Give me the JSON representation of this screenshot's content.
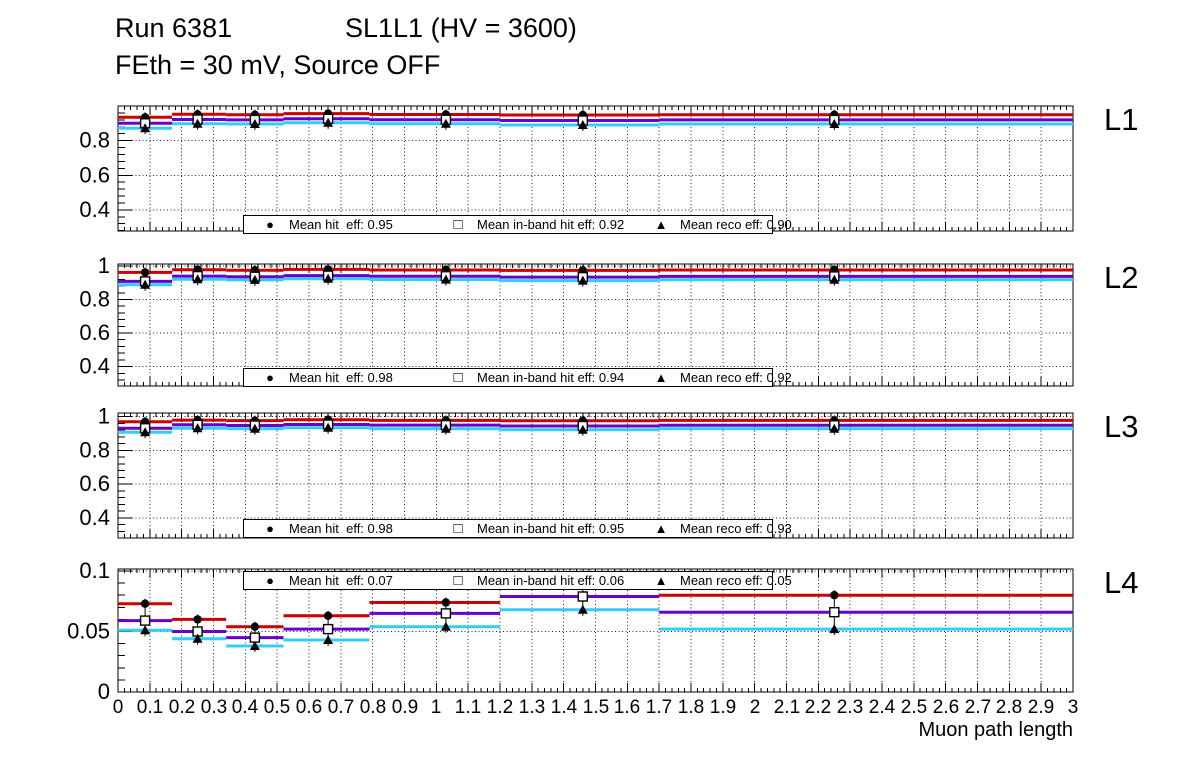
{
  "header": {
    "run_title": "Run 6381",
    "chamber_title": "SL1L1 (HV = 3600)",
    "subtitle": "FEth = 30 mV, Source OFF"
  },
  "x_axis": {
    "title": "Muon path length",
    "tick_labels": [
      "0",
      "0.1",
      "0.2",
      "0.3",
      "0.4",
      "0.5",
      "0.6",
      "0.7",
      "0.8",
      "0.9",
      "1",
      "1.1",
      "1.2",
      "1.3",
      "1.4",
      "1.5",
      "1.6",
      "1.7",
      "1.8",
      "1.9",
      "2",
      "2.1",
      "2.2",
      "2.3",
      "2.4",
      "2.5",
      "2.6",
      "2.7",
      "2.8",
      "2.9",
      "3"
    ]
  },
  "chart_data": {
    "type": "line",
    "x_label": "Muon path length",
    "x_range": [
      0,
      3
    ],
    "grid": "dotted",
    "bin_edges": [
      0,
      0.17,
      0.34,
      0.52,
      0.79,
      1.2,
      1.7,
      3.0
    ],
    "marker_x": [
      0.085,
      0.25,
      0.43,
      0.66,
      1.03,
      1.46,
      2.25
    ],
    "panels": [
      {
        "label": "L1",
        "y_range": [
          0.278,
          1.0
        ],
        "y_minor_step": 0.04,
        "y_ticks": [
          {
            "v": 0.4,
            "label": "0.4",
            "grid": true
          },
          {
            "v": 0.6,
            "label": "0.6",
            "grid": true
          },
          {
            "v": 0.8,
            "label": "0.8",
            "grid": true
          }
        ],
        "legend": [
          "Mean hit  eff: 0.95",
          "Mean in-band hit eff: 0.92",
          "Mean reco eff: 0.90"
        ],
        "series": [
          {
            "name": "Mean hit eff",
            "mean": 0.95,
            "color": "#cc0000",
            "marker": "filled-circle",
            "glyph": "●",
            "values": [
              0.935,
              0.952,
              0.95,
              0.956,
              0.951,
              0.948,
              0.95
            ]
          },
          {
            "name": "Mean in-band hit eff",
            "mean": 0.92,
            "color": "#6600cc",
            "marker": "open-square",
            "glyph": "□",
            "values": [
              0.9,
              0.922,
              0.92,
              0.926,
              0.921,
              0.916,
              0.92
            ]
          },
          {
            "name": "Mean reco eff",
            "mean": 0.9,
            "color": "#33ccff",
            "marker": "filled-triangle",
            "glyph": "▲",
            "values": [
              0.872,
              0.898,
              0.896,
              0.903,
              0.897,
              0.89,
              0.896
            ]
          }
        ]
      },
      {
        "label": "L2",
        "y_range": [
          0.284,
          1.012
        ],
        "y_minor_step": 0.04,
        "y_ticks": [
          {
            "v": 0.4,
            "label": "0.4",
            "grid": true
          },
          {
            "v": 0.6,
            "label": "0.6",
            "grid": true
          },
          {
            "v": 0.8,
            "label": "0.8",
            "grid": true
          },
          {
            "v": 1.0,
            "label": "1",
            "grid": true
          }
        ],
        "legend": [
          "Mean hit  eff: 0.98",
          "Mean in-band hit eff: 0.94",
          "Mean reco eff: 0.92"
        ],
        "series": [
          {
            "name": "Mean hit eff",
            "mean": 0.98,
            "color": "#cc0000",
            "marker": "filled-circle",
            "glyph": "●",
            "values": [
              0.962,
              0.978,
              0.975,
              0.98,
              0.976,
              0.974,
              0.976
            ]
          },
          {
            "name": "Mean in-band hit eff",
            "mean": 0.94,
            "color": "#6600cc",
            "marker": "open-square",
            "glyph": "□",
            "values": [
              0.908,
              0.94,
              0.936,
              0.943,
              0.939,
              0.934,
              0.938
            ]
          },
          {
            "name": "Mean reco eff",
            "mean": 0.92,
            "color": "#33ccff",
            "marker": "filled-triangle",
            "glyph": "▲",
            "values": [
              0.888,
              0.921,
              0.917,
              0.924,
              0.919,
              0.913,
              0.918
            ]
          }
        ]
      },
      {
        "label": "L3",
        "y_range": [
          0.28,
          1.022
        ],
        "y_minor_step": 0.04,
        "y_ticks": [
          {
            "v": 0.4,
            "label": "0.4",
            "grid": true
          },
          {
            "v": 0.6,
            "label": "0.6",
            "grid": true
          },
          {
            "v": 0.8,
            "label": "0.8",
            "grid": true
          },
          {
            "v": 1.0,
            "label": "1",
            "grid": true
          }
        ],
        "legend": [
          "Mean hit  eff: 0.98",
          "Mean in-band hit eff: 0.95",
          "Mean reco eff: 0.93"
        ],
        "series": [
          {
            "name": "Mean hit eff",
            "mean": 0.98,
            "color": "#cc0000",
            "marker": "filled-circle",
            "glyph": "●",
            "values": [
              0.97,
              0.98,
              0.977,
              0.982,
              0.978,
              0.976,
              0.978
            ]
          },
          {
            "name": "Mean in-band hit eff",
            "mean": 0.95,
            "color": "#6600cc",
            "marker": "open-square",
            "glyph": "□",
            "values": [
              0.932,
              0.952,
              0.948,
              0.954,
              0.95,
              0.945,
              0.949
            ]
          },
          {
            "name": "Mean reco eff",
            "mean": 0.93,
            "color": "#33ccff",
            "marker": "filled-triangle",
            "glyph": "▲",
            "values": [
              0.908,
              0.931,
              0.928,
              0.934,
              0.929,
              0.923,
              0.928
            ]
          }
        ]
      },
      {
        "label": "L4",
        "y_range": [
          0,
          0.1017
        ],
        "y_minor_step": 0.01,
        "y_ticks": [
          {
            "v": 0,
            "label": "0",
            "grid": false
          },
          {
            "v": 0.05,
            "label": "0.05",
            "grid": true
          },
          {
            "v": 0.1,
            "label": "0.1",
            "grid": true
          }
        ],
        "legend": [
          "Mean hit  eff: 0.07",
          "Mean in-band hit eff: 0.06",
          "Mean reco eff: 0.05"
        ],
        "series": [
          {
            "name": "Mean hit eff",
            "mean": 0.07,
            "color": "#cc0000",
            "marker": "filled-circle",
            "glyph": "●",
            "values": [
              0.073,
              0.06,
              0.054,
              0.063,
              0.074,
              0.088,
              0.08
            ]
          },
          {
            "name": "Mean in-band hit eff",
            "mean": 0.06,
            "color": "#6600cc",
            "marker": "open-square",
            "glyph": "□",
            "values": [
              0.059,
              0.05,
              0.045,
              0.052,
              0.065,
              0.079,
              0.066
            ]
          },
          {
            "name": "Mean reco eff",
            "mean": 0.05,
            "color": "#33ccff",
            "marker": "filled-triangle",
            "glyph": "▲",
            "values": [
              0.051,
              0.044,
              0.038,
              0.043,
              0.054,
              0.068,
              0.052
            ]
          }
        ]
      }
    ]
  }
}
